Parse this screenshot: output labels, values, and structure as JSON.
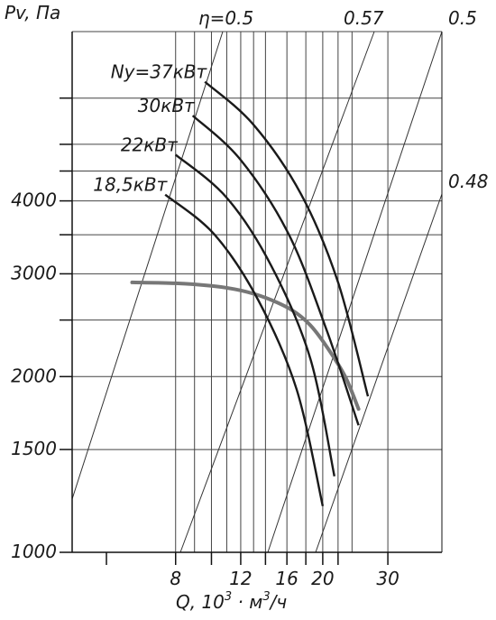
{
  "chart_data": {
    "type": "line",
    "title": "",
    "ylabel": "Pv, Па",
    "xlabel": "Q, 10³ · м³/ч",
    "xlabel_parts": {
      "q": "Q, 10",
      "sup1": "3",
      "mid": " · м",
      "sup2": "3",
      "end": "/ч"
    },
    "x_scale": "log",
    "y_scale": "log",
    "xlim": [
      4.2,
      42
    ],
    "ylim": [
      1000,
      7800
    ],
    "x_ticks": [
      {
        "value": 8,
        "label": "8"
      },
      {
        "value": 12,
        "label": "12"
      },
      {
        "value": 16,
        "label": "16"
      },
      {
        "value": 20,
        "label": "20"
      },
      {
        "value": 30,
        "label": "30"
      }
    ],
    "x_minor_ticks": [
      5.2,
      10,
      14,
      18,
      22
    ],
    "y_ticks": [
      {
        "value": 1000,
        "label": "1000"
      },
      {
        "value": 1500,
        "label": "1500"
      },
      {
        "value": 2000,
        "label": "2000"
      },
      {
        "value": 3000,
        "label": "3000"
      },
      {
        "value": 4000,
        "label": "4000"
      }
    ],
    "y_minor_ticks": [
      2500,
      3500,
      4500,
      5000,
      6000
    ],
    "grid": true,
    "x_grid_values": [
      8,
      9,
      10,
      11,
      12,
      13,
      14,
      16,
      18,
      20,
      22,
      24,
      30
    ],
    "y_grid_values": [
      1000,
      1500,
      2000,
      2500,
      3000,
      3500,
      4000,
      4500,
      5000,
      6000,
      7800
    ],
    "power_label_prefix": "Ny=",
    "series": [
      {
        "name": "37кВт",
        "color": "#1a1a1a",
        "x": [
          9.6,
          13.0,
          17.5,
          22.0,
          26.5
        ],
        "y": [
          6400,
          5400,
          4100,
          2900,
          1850
        ]
      },
      {
        "name": "30кВт",
        "color": "#1a1a1a",
        "x": [
          8.9,
          12.0,
          16.2,
          20.5,
          25.0
        ],
        "y": [
          5600,
          4700,
          3500,
          2400,
          1650
        ]
      },
      {
        "name": "22кВт",
        "color": "#1a1a1a",
        "x": [
          8.0,
          11.0,
          14.5,
          18.5,
          21.5
        ],
        "y": [
          4800,
          4050,
          3100,
          2150,
          1350
        ]
      },
      {
        "name": "18,5кВт",
        "color": "#1a1a1a",
        "x": [
          7.5,
          10.2,
          13.4,
          17.0,
          20.0
        ],
        "y": [
          4100,
          3500,
          2700,
          1900,
          1200
        ]
      }
    ],
    "system_curve": {
      "color": "#777777",
      "x": [
        6.1,
        8.0,
        10.0,
        12.0,
        14.0,
        16.5,
        18.5,
        20.5,
        23.0,
        25.0
      ],
      "y": [
        2900,
        2890,
        2860,
        2810,
        2730,
        2600,
        2450,
        2250,
        2000,
        1760
      ]
    },
    "efficiency_lines": [
      {
        "label": "η=0.5",
        "label_side": "top"
      },
      {
        "label": "0.57",
        "label_side": "top"
      },
      {
        "label": "0.5",
        "label_side": "top"
      },
      {
        "label": "0.48",
        "label_side": "right"
      }
    ]
  }
}
